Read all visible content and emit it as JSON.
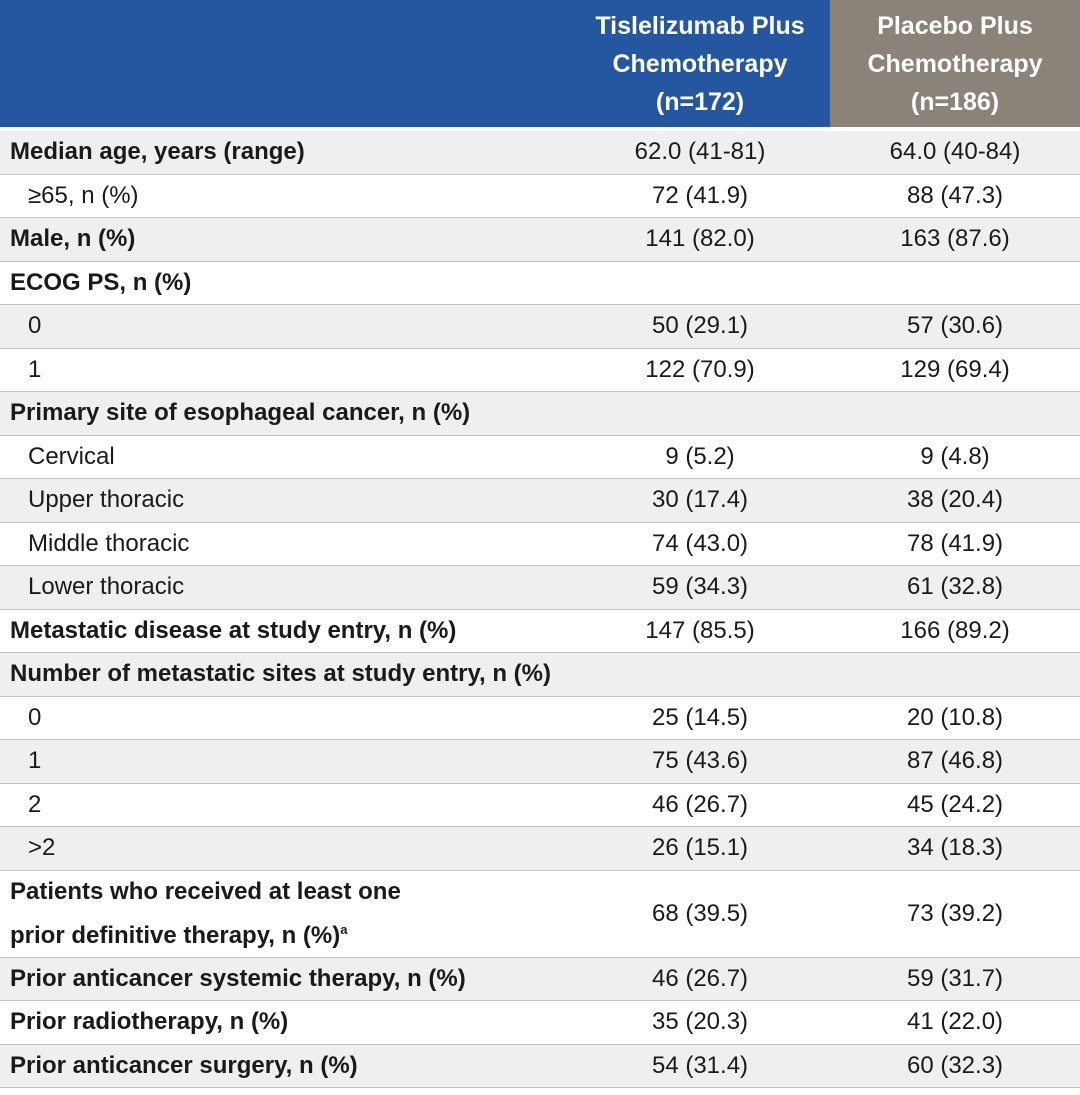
{
  "header": {
    "columns": [
      {
        "lines": [
          "Tislelizumab Plus",
          "Chemotherapy",
          "(n=172)"
        ],
        "color": "#24579f"
      },
      {
        "lines": [
          "Placebo Plus",
          "Chemotherapy",
          "(n=186)"
        ],
        "color": "#8b8279"
      }
    ]
  },
  "table": {
    "rows": [
      {
        "label": [
          "Median age, years (range)"
        ],
        "bold": true,
        "values": [
          "62.0 (41-81)",
          "64.0 (40-84)"
        ]
      },
      {
        "label": [
          "≥65, n (%)"
        ],
        "indent": true,
        "values": [
          "72 (41.9)",
          "88 (47.3)"
        ]
      },
      {
        "label": [
          "Male, n (%)"
        ],
        "bold": true,
        "values": [
          "141 (82.0)",
          "163 (87.6)"
        ]
      },
      {
        "label": [
          "ECOG PS, n (%)"
        ],
        "bold": true
      },
      {
        "label": [
          "0"
        ],
        "indent": true,
        "values": [
          "50 (29.1)",
          "57 (30.6)"
        ]
      },
      {
        "label": [
          "1"
        ],
        "indent": true,
        "values": [
          "122 (70.9)",
          "129 (69.4)"
        ]
      },
      {
        "label": [
          "Primary site of esophageal cancer, n (%)"
        ],
        "bold": true
      },
      {
        "label": [
          "Cervical"
        ],
        "indent": true,
        "values": [
          "9 (5.2)",
          "9 (4.8)"
        ]
      },
      {
        "label": [
          "Upper thoracic"
        ],
        "indent": true,
        "values": [
          "30 (17.4)",
          "38 (20.4)"
        ]
      },
      {
        "label": [
          "Middle thoracic"
        ],
        "indent": true,
        "values": [
          "74 (43.0)",
          "78 (41.9)"
        ]
      },
      {
        "label": [
          "Lower thoracic"
        ],
        "indent": true,
        "values": [
          "59 (34.3)",
          "61 (32.8)"
        ]
      },
      {
        "label": [
          "Metastatic disease at study entry, n (%)"
        ],
        "bold": true,
        "values": [
          "147 (85.5)",
          "166 (89.2)"
        ]
      },
      {
        "label": [
          "Number of metastatic sites at study entry, n (%)"
        ],
        "bold": true
      },
      {
        "label": [
          "0"
        ],
        "indent": true,
        "values": [
          "25 (14.5)",
          "20 (10.8)"
        ]
      },
      {
        "label": [
          "1"
        ],
        "indent": true,
        "values": [
          "75 (43.6)",
          "87 (46.8)"
        ]
      },
      {
        "label": [
          "2"
        ],
        "indent": true,
        "values": [
          "46 (26.7)",
          "45 (24.2)"
        ]
      },
      {
        "label": [
          ">2"
        ],
        "indent": true,
        "values": [
          "26 (15.1)",
          "34 (18.3)"
        ]
      },
      {
        "label": [
          "Patients who received at least one",
          "prior definitive therapy, n (%)"
        ],
        "footnote": "a",
        "bold": true,
        "values": [
          "68 (39.5)",
          "73 (39.2)"
        ]
      },
      {
        "label": [
          "Prior anticancer systemic therapy, n (%)"
        ],
        "bold": true,
        "values": [
          "46 (26.7)",
          "59 (31.7)"
        ]
      },
      {
        "label": [
          "Prior radiotherapy, n (%)"
        ],
        "bold": true,
        "values": [
          "35 (20.3)",
          "41 (22.0)"
        ]
      },
      {
        "label": [
          "Prior anticancer surgery, n (%)"
        ],
        "bold": true,
        "values": [
          "54 (31.4)",
          "60 (32.3)"
        ]
      }
    ]
  }
}
